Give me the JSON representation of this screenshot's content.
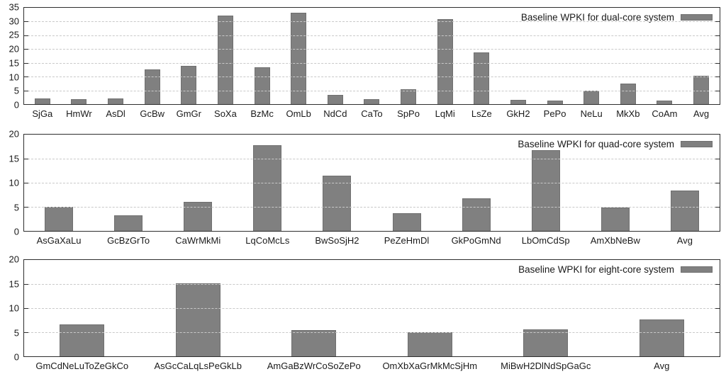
{
  "colors": {
    "bar_fill": "#808080",
    "bar_border": "#6f6f6f",
    "grid": "#c9c9c9",
    "frame": "#2e2e2e",
    "text": "#1a1a1a",
    "background": "#ffffff"
  },
  "chart_data": [
    {
      "type": "bar",
      "legend_label": "Baseline WPKI for dual-core system",
      "legend_position": "top-right",
      "grid": true,
      "ylim": [
        0,
        35
      ],
      "yticks": [
        0,
        5,
        10,
        15,
        20,
        25,
        30,
        35
      ],
      "xlabel": "",
      "ylabel": "",
      "categories": [
        "SjGa",
        "HmWr",
        "AsDl",
        "GcBw",
        "GmGr",
        "SoXa",
        "BzMc",
        "OmLb",
        "NdCd",
        "CaTo",
        "SpPo",
        "LqMi",
        "LsZe",
        "GkH2",
        "PePo",
        "NeLu",
        "MkXb",
        "CoAm",
        "Avg"
      ],
      "values": [
        2.1,
        1.7,
        2.0,
        12.5,
        14.0,
        32.3,
        13.4,
        33.2,
        3.4,
        1.9,
        5.4,
        30.8,
        18.7,
        1.6,
        1.3,
        5.0,
        7.4,
        1.2,
        10.4
      ]
    },
    {
      "type": "bar",
      "legend_label": "Baseline WPKI for quad-core system",
      "legend_position": "top-right",
      "grid": true,
      "ylim": [
        0,
        20
      ],
      "yticks": [
        0,
        5,
        10,
        15,
        20
      ],
      "xlabel": "",
      "ylabel": "",
      "categories": [
        "AsGaXaLu",
        "GcBzGrTo",
        "CaWrMkMi",
        "LqCoMcLs",
        "BwSoSjH2",
        "PeZeHmDl",
        "GkPoGmNd",
        "LbOmCdSp",
        "AmXbNeBw",
        "Avg"
      ],
      "values": [
        5.0,
        3.2,
        6.0,
        17.8,
        11.5,
        3.7,
        6.7,
        16.8,
        4.8,
        8.4
      ]
    },
    {
      "type": "bar",
      "legend_label": "Baseline WPKI for eight-core system",
      "legend_position": "top-right",
      "grid": true,
      "ylim": [
        0,
        20
      ],
      "yticks": [
        0,
        5,
        10,
        15,
        20
      ],
      "xlabel": "",
      "ylabel": "",
      "categories": [
        "GmCdNeLuToZeGkCo",
        "AsGcCaLqLsPeGkLb",
        "AmGaBzWrCoSoZePo",
        "OmXbXaGrMkMcSjHm",
        "MiBwH2DlNdSpGaGc",
        "Avg"
      ],
      "values": [
        6.6,
        15.1,
        5.5,
        5.0,
        5.6,
        7.6
      ]
    }
  ]
}
